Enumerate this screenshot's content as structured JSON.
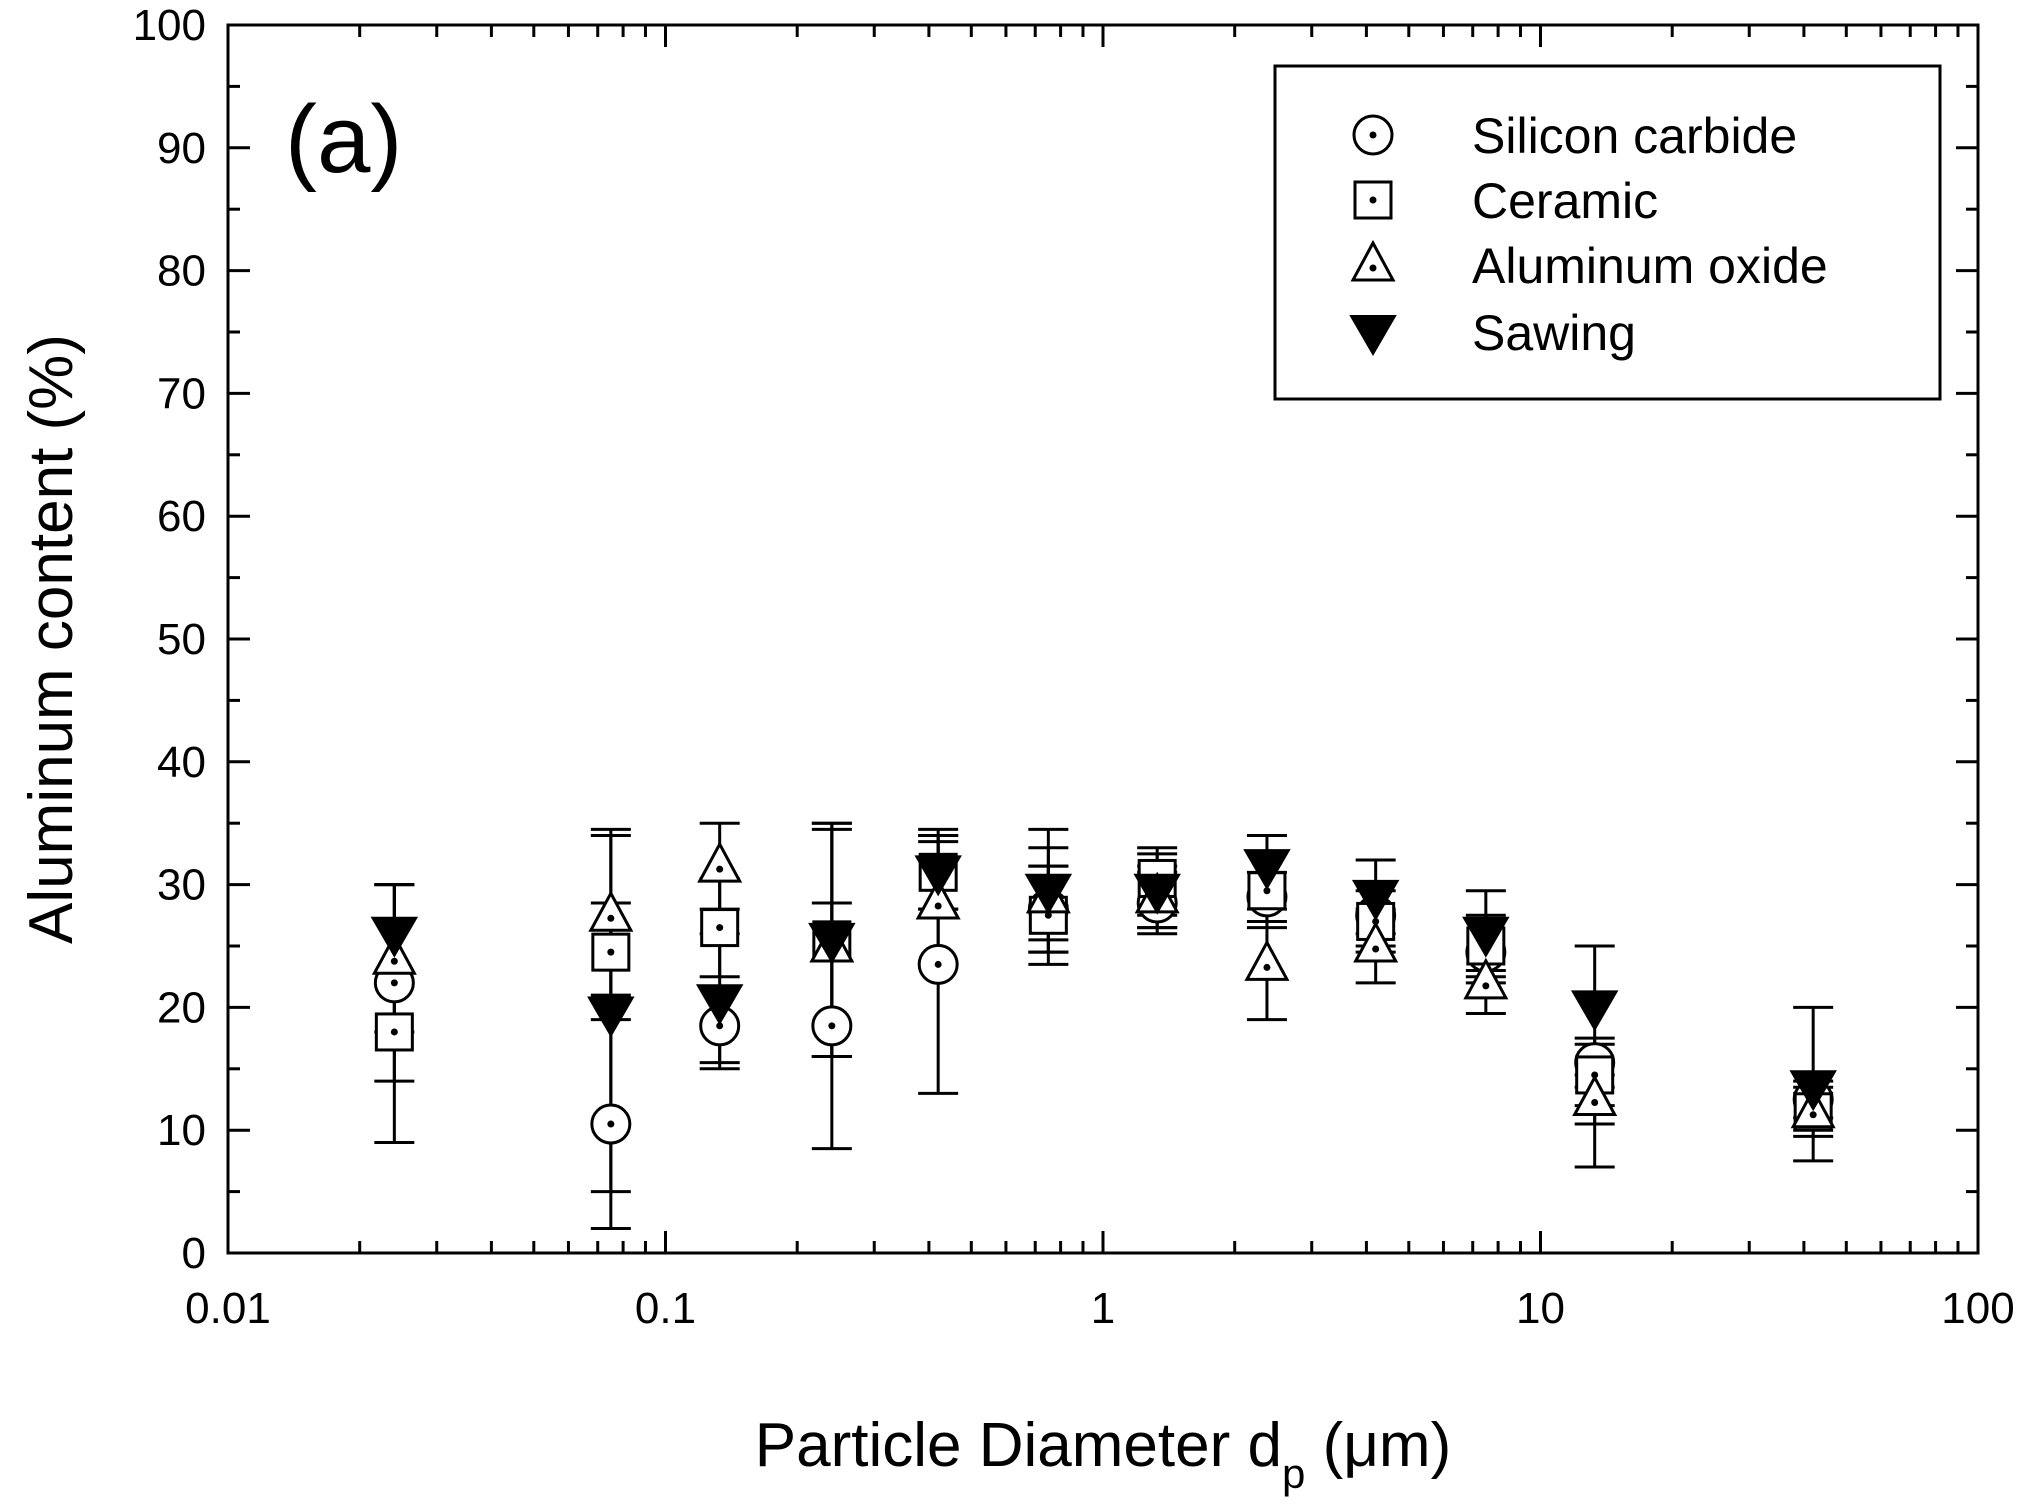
{
  "chart_data": {
    "type": "scatter",
    "panel_label": "(a)",
    "xlabel": "Particle Diameter",
    "xlabel_symbol": "d",
    "xlabel_subscript": "p",
    "xlabel_unit": "(μm)",
    "ylabel": "Aluminum content (%)",
    "xscale": "log",
    "xlim": [
      0.01,
      100
    ],
    "ylim": [
      0,
      100
    ],
    "x_ticks": [
      "0.01",
      "0.1",
      "1",
      "10",
      "100"
    ],
    "y_ticks": [
      "0",
      "10",
      "20",
      "30",
      "40",
      "50",
      "60",
      "70",
      "80",
      "90",
      "100"
    ],
    "grid": false,
    "legend_position": "top-right",
    "series": [
      {
        "name": "Silicon carbide",
        "marker": "circle-dot",
        "points": [
          {
            "x": 0.024,
            "y": 22.0,
            "lo": 14.0,
            "hi": 30.0
          },
          {
            "x": 0.075,
            "y": 10.5,
            "lo": 2.0,
            "hi": 19.0
          },
          {
            "x": 0.133,
            "y": 18.5,
            "lo": 15.5,
            "hi": 21.5
          },
          {
            "x": 0.24,
            "y": 18.5,
            "lo": 8.5,
            "hi": 28.5
          },
          {
            "x": 0.42,
            "y": 23.5,
            "lo": 13.0,
            "hi": 34.0
          },
          {
            "x": 0.75,
            "y": 28.0,
            "lo": 24.5,
            "hi": 31.5
          },
          {
            "x": 1.33,
            "y": 28.5,
            "lo": 26.0,
            "hi": 31.0
          },
          {
            "x": 2.37,
            "y": 29.0,
            "lo": 27.0,
            "hi": 31.0
          },
          {
            "x": 4.2,
            "y": 27.5,
            "lo": 25.0,
            "hi": 30.0
          },
          {
            "x": 7.5,
            "y": 24.5,
            "lo": 22.0,
            "hi": 27.0
          },
          {
            "x": 13.3,
            "y": 15.5,
            "lo": 13.5,
            "hi": 17.5
          },
          {
            "x": 42.0,
            "y": 12.5,
            "lo": 11.0,
            "hi": 14.0
          }
        ]
      },
      {
        "name": "Ceramic",
        "marker": "square-dot",
        "points": [
          {
            "x": 0.024,
            "y": 18.0,
            "lo": 9.0,
            "hi": 27.0
          },
          {
            "x": 0.075,
            "y": 24.5,
            "lo": 20.5,
            "hi": 28.5
          },
          {
            "x": 0.133,
            "y": 26.5,
            "lo": 22.5,
            "hi": 30.5
          },
          {
            "x": 0.24,
            "y": 25.5,
            "lo": 16.0,
            "hi": 35.0
          },
          {
            "x": 0.42,
            "y": 31.0,
            "lo": 28.0,
            "hi": 34.0
          },
          {
            "x": 0.75,
            "y": 27.5,
            "lo": 23.5,
            "hi": 31.5
          },
          {
            "x": 1.33,
            "y": 30.5,
            "lo": 27.5,
            "hi": 33.0
          },
          {
            "x": 2.37,
            "y": 29.5,
            "lo": 26.5,
            "hi": 32.5
          },
          {
            "x": 4.2,
            "y": 27.0,
            "lo": 24.5,
            "hi": 29.5
          },
          {
            "x": 7.5,
            "y": 25.0,
            "lo": 22.5,
            "hi": 27.5
          },
          {
            "x": 13.3,
            "y": 14.5,
            "lo": 12.0,
            "hi": 17.0
          },
          {
            "x": 42.0,
            "y": 11.5,
            "lo": 9.5,
            "hi": 13.5
          }
        ]
      },
      {
        "name": "Aluminum oxide",
        "marker": "triangle-dot",
        "points": [
          {
            "x": 0.024,
            "y": 24.0,
            "lo": 18.0,
            "hi": 30.0
          },
          {
            "x": 0.075,
            "y": 27.5,
            "lo": 21.0,
            "hi": 34.0
          },
          {
            "x": 0.133,
            "y": 31.5,
            "lo": 28.0,
            "hi": 35.0
          },
          {
            "x": 0.24,
            "y": 25.0,
            "lo": 16.0,
            "hi": 34.5
          },
          {
            "x": 0.42,
            "y": 28.5,
            "lo": 23.5,
            "hi": 33.5
          },
          {
            "x": 0.75,
            "y": 29.0,
            "lo": 25.5,
            "hi": 33.0
          },
          {
            "x": 1.33,
            "y": 29.0,
            "lo": 26.5,
            "hi": 31.5
          },
          {
            "x": 2.37,
            "y": 23.5,
            "lo": 19.0,
            "hi": 28.0
          },
          {
            "x": 4.2,
            "y": 25.0,
            "lo": 22.0,
            "hi": 28.0
          },
          {
            "x": 7.5,
            "y": 22.0,
            "lo": 19.5,
            "hi": 24.5
          },
          {
            "x": 13.3,
            "y": 12.5,
            "lo": 10.5,
            "hi": 14.5
          },
          {
            "x": 42.0,
            "y": 11.5,
            "lo": 10.0,
            "hi": 13.0
          }
        ]
      },
      {
        "name": "Sawing",
        "marker": "triangle-down-filled",
        "points": [
          {
            "x": 0.024,
            "y": 26.0,
            "lo": 22.0,
            "hi": 30.0
          },
          {
            "x": 0.075,
            "y": 19.5,
            "lo": 5.0,
            "hi": 34.5
          },
          {
            "x": 0.133,
            "y": 20.5,
            "lo": 15.0,
            "hi": 26.0
          },
          {
            "x": 0.24,
            "y": 25.5,
            "lo": 16.0,
            "hi": 35.0
          },
          {
            "x": 0.42,
            "y": 31.0,
            "lo": 28.0,
            "hi": 34.5
          },
          {
            "x": 0.75,
            "y": 29.5,
            "lo": 24.5,
            "hi": 34.5
          },
          {
            "x": 1.33,
            "y": 29.5,
            "lo": 26.5,
            "hi": 32.5
          },
          {
            "x": 2.37,
            "y": 31.5,
            "lo": 29.0,
            "hi": 34.0
          },
          {
            "x": 4.2,
            "y": 29.0,
            "lo": 26.0,
            "hi": 32.0
          },
          {
            "x": 7.5,
            "y": 26.0,
            "lo": 23.0,
            "hi": 29.5
          },
          {
            "x": 13.3,
            "y": 20.0,
            "lo": 7.0,
            "hi": 25.0
          },
          {
            "x": 42.0,
            "y": 13.5,
            "lo": 7.5,
            "hi": 20.0
          }
        ]
      }
    ]
  }
}
